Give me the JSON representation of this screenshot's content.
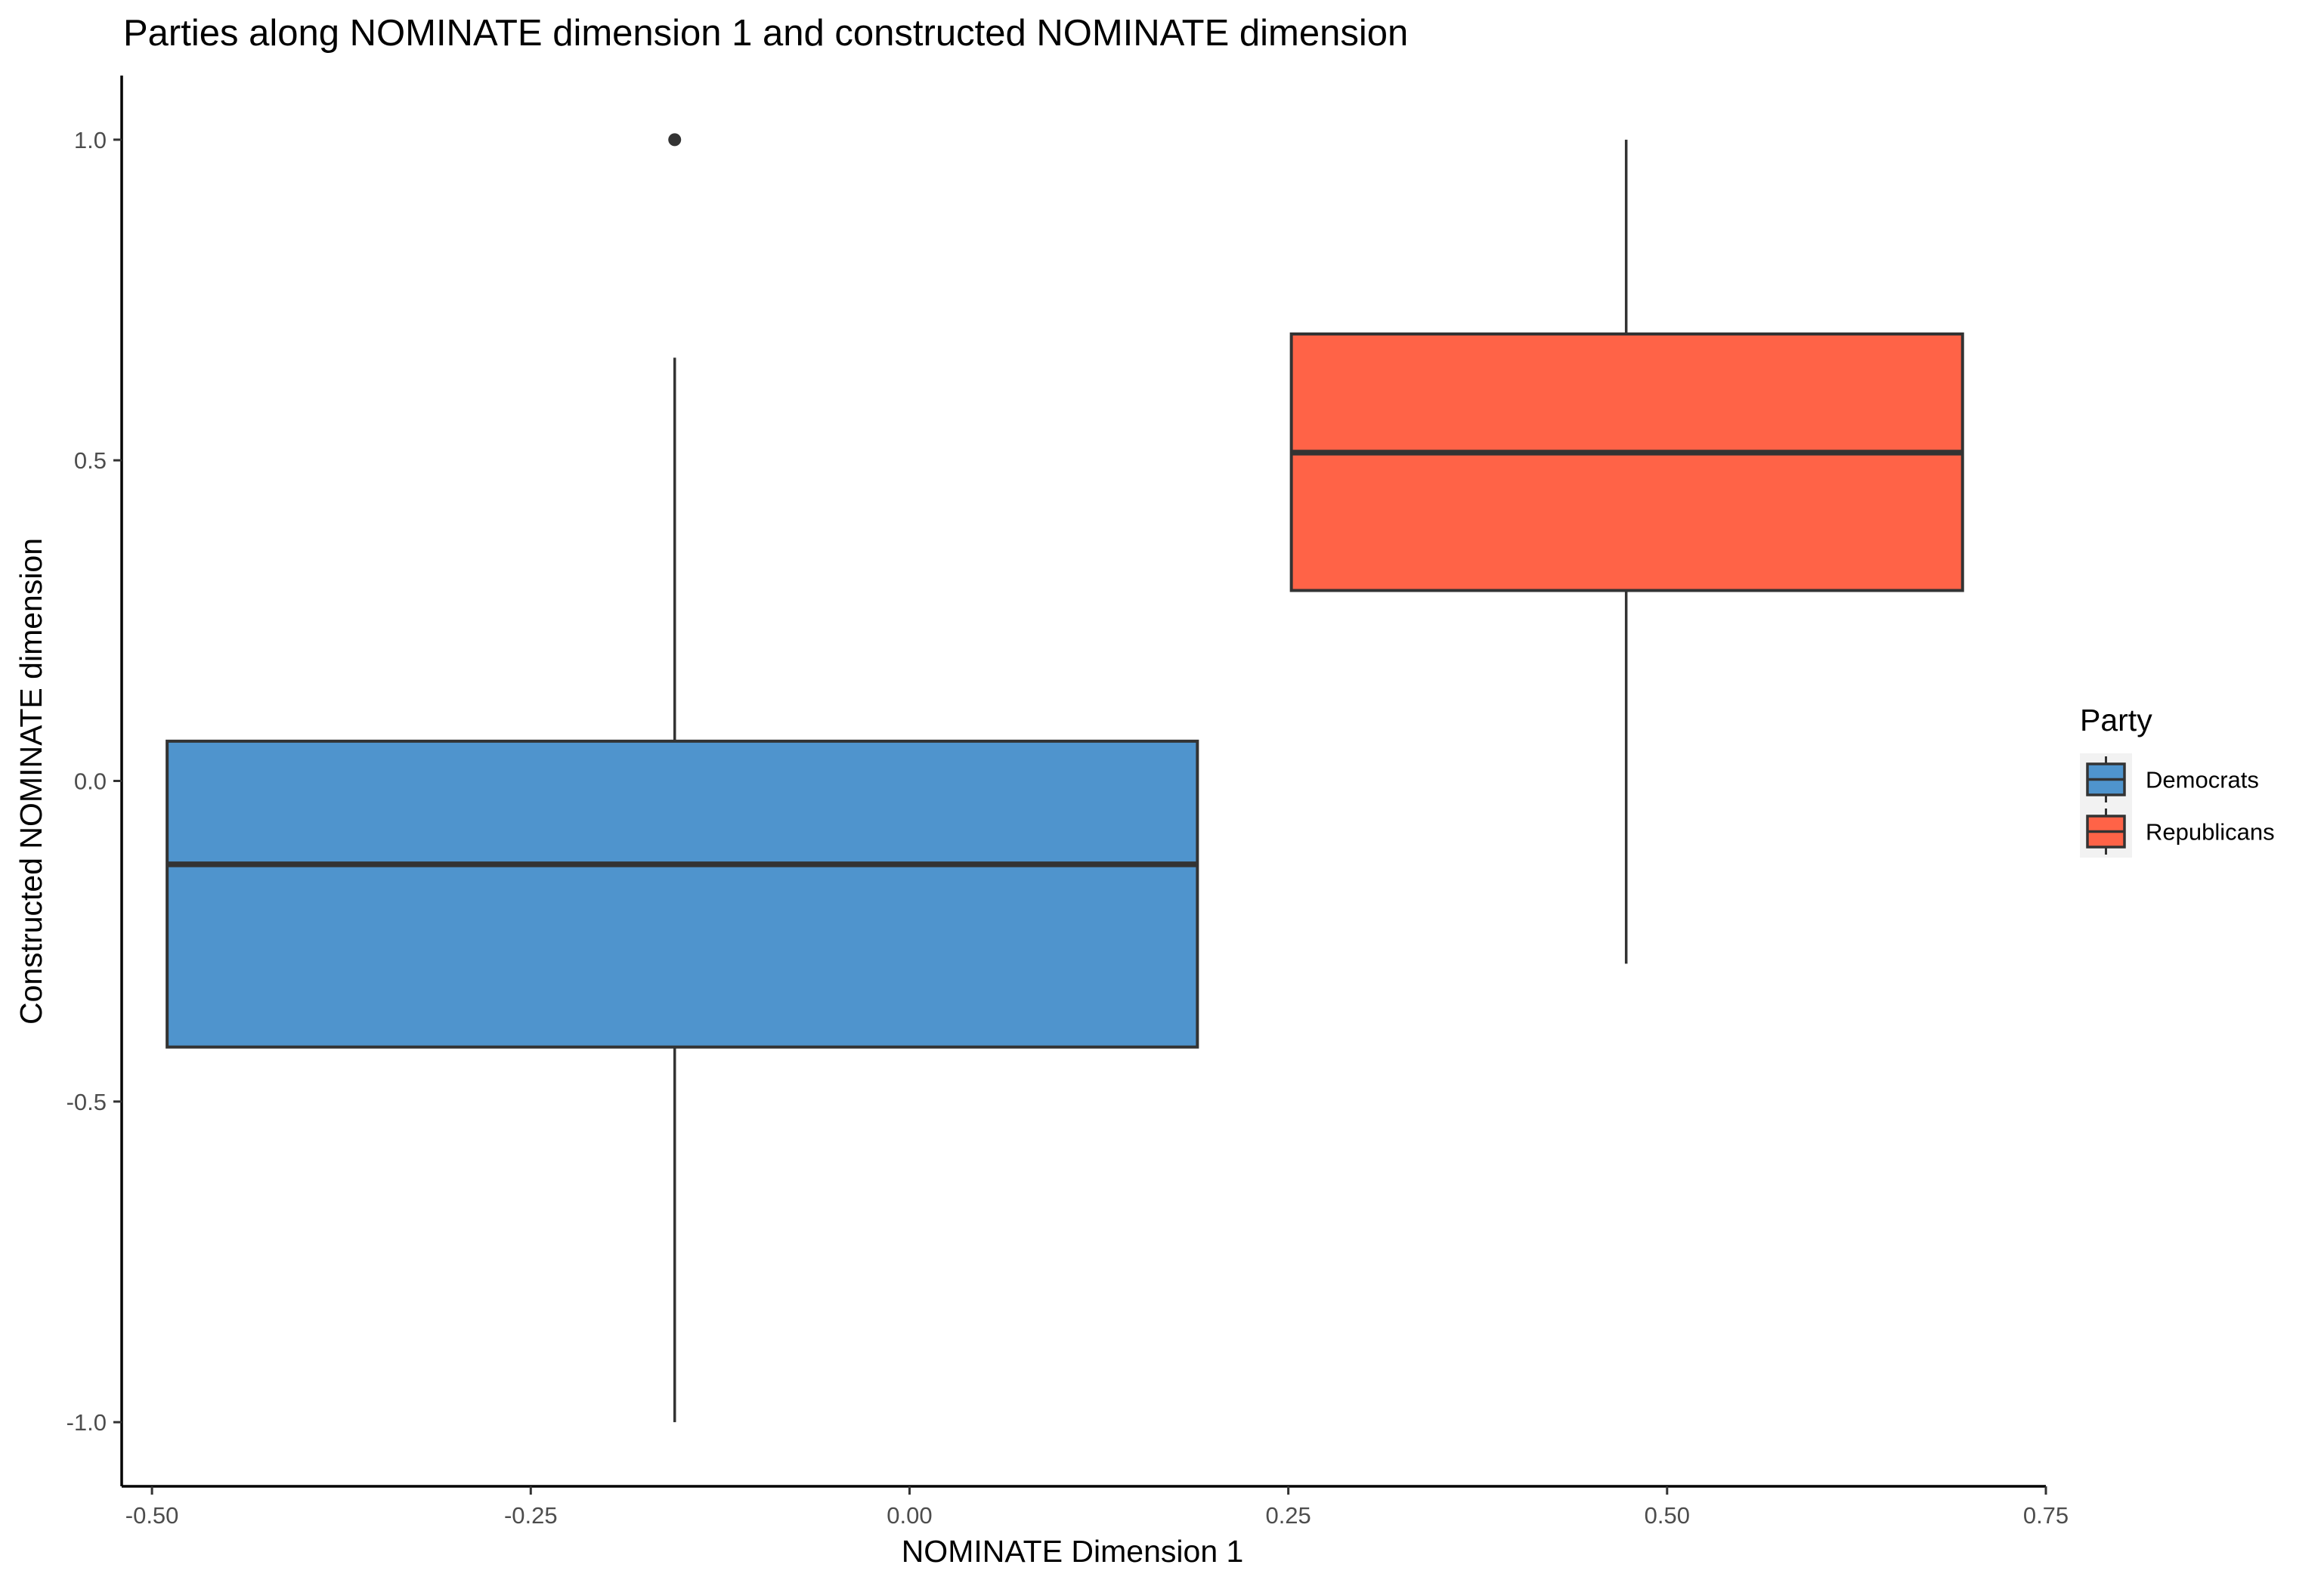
{
  "chart_data": {
    "type": "boxplot",
    "title": "Parties along NOMINATE dimension 1 and constructed NOMINATE dimension",
    "xlabel": "NOMINATE Dimension 1",
    "ylabel": "Constructed NOMINATE dimension",
    "xlim": [
      -0.52,
      0.75
    ],
    "ylim": [
      -1.1,
      1.1
    ],
    "x_ticks": [
      {
        "value": -0.5,
        "label": "-0.50"
      },
      {
        "value": -0.25,
        "label": "-0.25"
      },
      {
        "value": 0.0,
        "label": "0.00"
      },
      {
        "value": 0.25,
        "label": "0.25"
      },
      {
        "value": 0.5,
        "label": "0.50"
      },
      {
        "value": 0.75,
        "label": "0.75"
      }
    ],
    "y_ticks": [
      {
        "value": -1.0,
        "label": "-1.0"
      },
      {
        "value": -0.5,
        "label": "-0.5"
      },
      {
        "value": 0.0,
        "label": "0.0"
      },
      {
        "value": 0.5,
        "label": "0.5"
      },
      {
        "value": 1.0,
        "label": "1.0"
      }
    ],
    "grid": false,
    "legend": {
      "title": "Party",
      "position": "right",
      "entries": [
        "Democrats",
        "Republicans"
      ]
    },
    "series": [
      {
        "name": "Democrats",
        "color": "#4F94CD",
        "x_min": -0.49,
        "x_max": 0.19,
        "x_center": -0.155,
        "whisker_low": -1.0,
        "q1": -0.415,
        "median": -0.13,
        "q3": 0.062,
        "whisker_high": 0.66,
        "outliers": [
          1.0
        ]
      },
      {
        "name": "Republicans",
        "color": "#FF6347",
        "x_min": 0.252,
        "x_max": 0.695,
        "x_center": 0.473,
        "whisker_low": -0.285,
        "q1": 0.297,
        "median": 0.512,
        "q3": 0.697,
        "whisker_high": 1.0,
        "outliers": []
      }
    ]
  }
}
